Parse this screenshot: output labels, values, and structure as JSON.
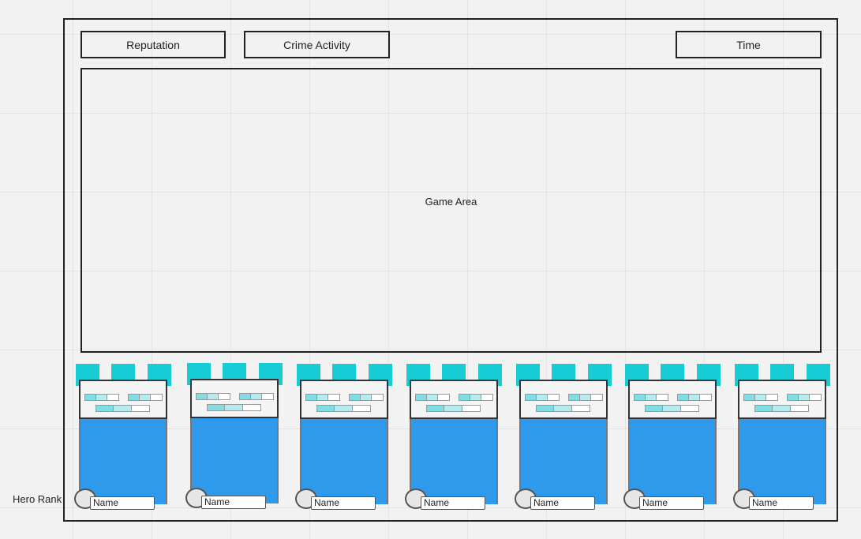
{
  "header": {
    "reputation_label": "Reputation",
    "crime_activity_label": "Crime Activity",
    "time_label": "Time"
  },
  "game_area": {
    "label": "Game Area"
  },
  "hero_rank_label": "Hero Rank",
  "heroes": [
    {
      "name": "Name"
    },
    {
      "name": "Name"
    },
    {
      "name": "Name"
    },
    {
      "name": "Name"
    },
    {
      "name": "Name"
    },
    {
      "name": "Name"
    },
    {
      "name": "Name"
    }
  ],
  "colors": {
    "ability_square": "#17ccd4",
    "hero_body": "#2f9aec",
    "stat_fill": "#7fdde3"
  }
}
